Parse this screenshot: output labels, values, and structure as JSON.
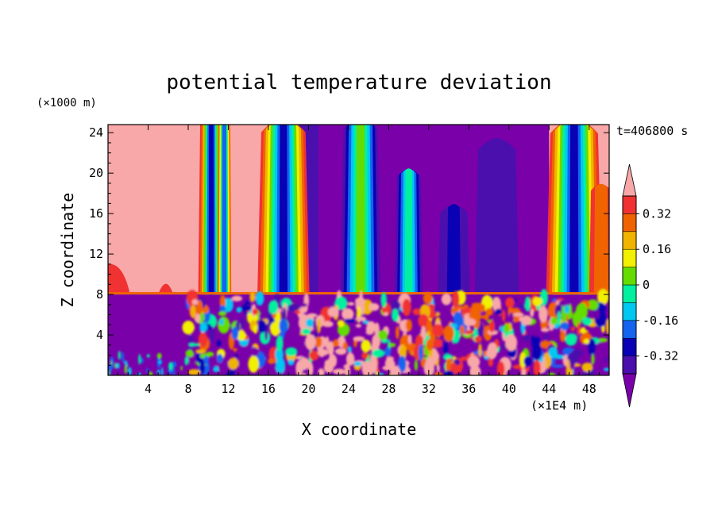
{
  "chart_data": {
    "type": "heatmap",
    "title": "potential temperature deviation",
    "xlabel": "X coordinate",
    "ylabel": "Z coordinate",
    "x_unit": "(×1E4 m)",
    "y_unit": "(×1000 m)",
    "time_label": "t=406800 s",
    "xlim": [
      0,
      50
    ],
    "ylim": [
      0,
      24.8
    ],
    "x_ticks": [
      4,
      8,
      12,
      16,
      20,
      24,
      28,
      32,
      36,
      40,
      44,
      48
    ],
    "y_ticks": [
      4,
      8,
      12,
      16,
      20,
      24
    ],
    "colorbar": {
      "levels": [
        -0.4,
        -0.32,
        -0.24,
        -0.16,
        -0.08,
        0,
        0.08,
        0.16,
        0.24,
        0.32,
        0.4
      ],
      "tick_labels": [
        "-0.32",
        "-0.16",
        "0",
        "0.16",
        "0.32"
      ],
      "tick_values": [
        -0.32,
        -0.16,
        0,
        0.16,
        0.32
      ],
      "colors": [
        "#7a00aa",
        "#4b0fae",
        "#0a00b4",
        "#1464f0",
        "#00c8f0",
        "#00f0a0",
        "#64dc00",
        "#f0f000",
        "#f0b400",
        "#f06400",
        "#f03232",
        "#f8a8a8"
      ],
      "extend": "both"
    },
    "description_regions": {
      "upper_layer_z_above": 8,
      "boundary_z": 8
    }
  }
}
